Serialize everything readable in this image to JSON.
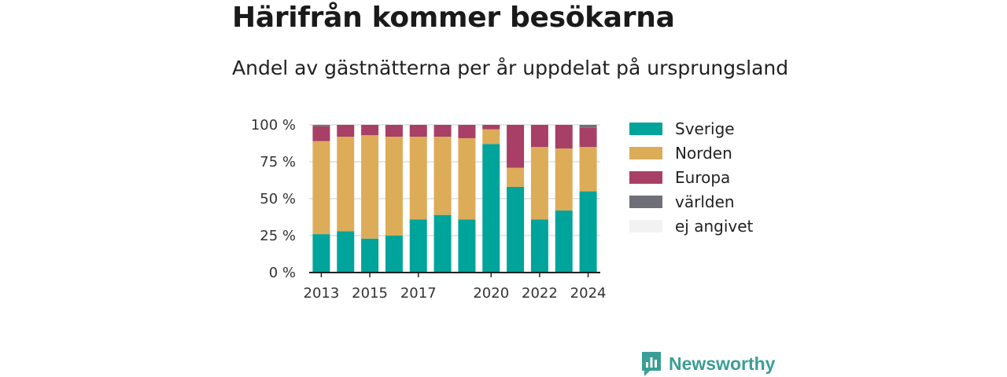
{
  "title": "Härifrån kommer besökarna",
  "subtitle": "Andel av gästnätterna per år uppdelat på ursprungsland",
  "brand": "Newsworthy",
  "chart_data": {
    "type": "bar",
    "stacked": true,
    "title": "Härifrån kommer besökarna",
    "subtitle": "Andel av gästnätterna per år uppdelat på ursprungsland",
    "x": [
      2013,
      2014,
      2015,
      2016,
      2017,
      2018,
      2019,
      2020,
      2021,
      2022,
      2023,
      2024
    ],
    "x_tick_labels": [
      "2013",
      "2015",
      "2017",
      "2020",
      "2022",
      "2024"
    ],
    "x_tick_values": [
      2013,
      2015,
      2017,
      2020,
      2022,
      2024
    ],
    "y_tick_labels": [
      "0 %",
      "25 %",
      "50 %",
      "75 %",
      "100 %"
    ],
    "y_tick_values": [
      0,
      25,
      50,
      75,
      100
    ],
    "ylim": [
      0,
      100
    ],
    "grid": true,
    "legend_position": "right",
    "series": [
      {
        "name": "Sverige",
        "color": "#00a49a",
        "values": [
          26,
          28,
          23,
          25,
          36,
          39,
          36,
          87,
          58,
          36,
          42,
          55
        ]
      },
      {
        "name": "Norden",
        "color": "#dcac59",
        "values": [
          63,
          64,
          70,
          67,
          56,
          53,
          55,
          10,
          13,
          49,
          42,
          30
        ]
      },
      {
        "name": "Europa",
        "color": "#a83f66",
        "values": [
          10,
          8,
          7,
          8,
          8,
          8,
          9,
          3,
          29,
          15,
          16,
          13
        ]
      },
      {
        "name": "världen",
        "color": "#6f6f77",
        "values": [
          1,
          0,
          0,
          0,
          0,
          0,
          0,
          0,
          0,
          0,
          0,
          2
        ]
      },
      {
        "name": "ej angivet",
        "color": "#f2f2f2",
        "values": [
          0,
          0,
          0,
          0,
          0,
          0,
          0,
          0,
          0,
          0,
          0,
          0
        ]
      }
    ]
  }
}
